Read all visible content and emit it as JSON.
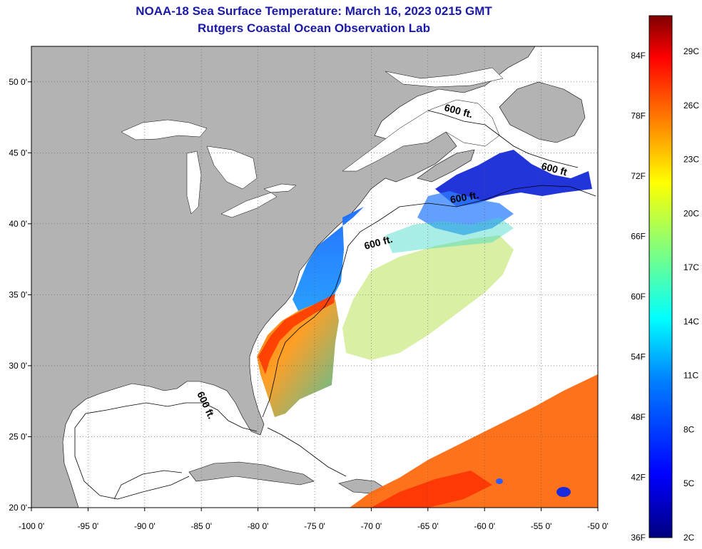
{
  "title": {
    "line1": "NOAA-18 Sea Surface Temperature:  March 16, 2023 0215 GMT",
    "line2": "Rutgers Coastal Ocean Observation Lab"
  },
  "map": {
    "lon_range": [
      -100,
      -50
    ],
    "lat_range": [
      20,
      52.5
    ],
    "lon_ticks": [
      "-100 0'",
      "-95 0'",
      "-90 0'",
      "-85 0'",
      "-80 0'",
      "-75 0'",
      "-70 0'",
      "-65 0'",
      "-60 0'",
      "-55 0'",
      "-50 0'"
    ],
    "lat_ticks": [
      "20 0'",
      "25 0'",
      "30 0'",
      "35 0'",
      "40 0'",
      "45 0'",
      "50 0'"
    ],
    "grid": "dotted",
    "land_color": "#b3b3b3",
    "water_color": "#ffffff",
    "isobath_labels": [
      "600 ft.",
      "600 ft.",
      "600 ft.",
      "600 ft",
      "600 ft."
    ]
  },
  "colorbar": {
    "fahrenheit": [
      "84F",
      "78F",
      "72F",
      "66F",
      "60F",
      "54F",
      "48F",
      "42F",
      "36F"
    ],
    "celsius": [
      "29C",
      "26C",
      "23C",
      "20C",
      "17C",
      "14C",
      "11C",
      "8C",
      "5C",
      "2C"
    ],
    "colors": [
      "#00007f",
      "#0000ff",
      "#007fff",
      "#00ffff",
      "#7fff7f",
      "#ffff00",
      "#ff7f00",
      "#ff0000",
      "#7f0000"
    ]
  }
}
